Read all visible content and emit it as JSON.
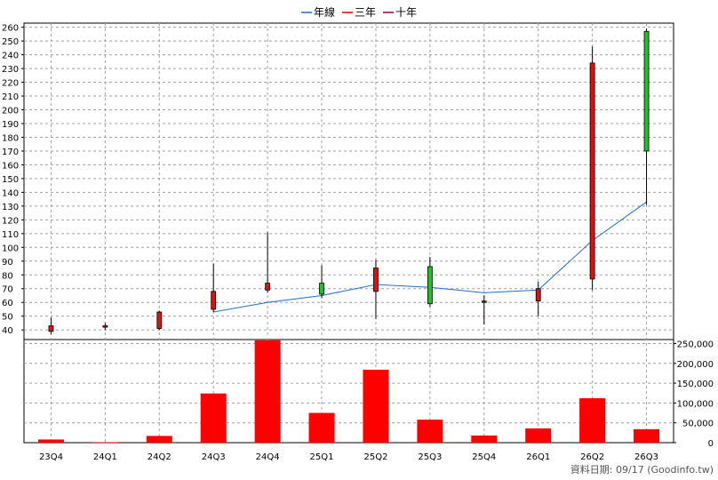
{
  "legend": {
    "annual": "年線",
    "three_year": "三年",
    "ten_year": "十年"
  },
  "credit": "資料日期: 09/17  (Goodinfo.tw)",
  "colors": {
    "up": "#22c022",
    "down": "#dd1111",
    "annual_line": "#1f6fd0",
    "three_year": "#ee0000",
    "ten_year": "#990044",
    "volume": "#ff0000",
    "grid": "#a0a0a0"
  },
  "chart_data": [
    {
      "type": "candlestick",
      "categories": [
        "23Q4",
        "24Q1",
        "24Q2",
        "24Q3",
        "24Q4",
        "25Q1",
        "25Q2",
        "25Q3",
        "25Q4",
        "26Q1",
        "26Q2",
        "26Q3"
      ],
      "candles": [
        {
          "open": 43,
          "close": 39,
          "high": 49,
          "low": 37
        },
        {
          "open": 43,
          "close": 42,
          "high": 45,
          "low": 40
        },
        {
          "open": 53,
          "close": 41,
          "high": 54,
          "low": 40
        },
        {
          "open": 68,
          "close": 55,
          "high": 88,
          "low": 53
        },
        {
          "open": 74,
          "close": 69,
          "high": 111,
          "low": 67
        },
        {
          "open": 66,
          "close": 74,
          "high": 87,
          "low": 63
        },
        {
          "open": 85,
          "close": 68,
          "high": 91,
          "low": 48
        },
        {
          "open": 59,
          "close": 86,
          "high": 93,
          "low": 57
        },
        {
          "open": 61,
          "close": 60,
          "high": 65,
          "low": 44
        },
        {
          "open": 70,
          "close": 61,
          "high": 75,
          "low": 50
        },
        {
          "open": 234,
          "close": 77,
          "high": 246,
          "low": 69
        },
        {
          "open": 170,
          "close": 257,
          "high": 259,
          "low": 131
        }
      ],
      "annual_line": [
        null,
        null,
        null,
        53,
        60,
        65,
        73,
        71,
        67,
        69,
        105,
        133
      ],
      "y_ticks": [
        40,
        50,
        60,
        70,
        80,
        90,
        100,
        110,
        120,
        130,
        140,
        150,
        160,
        170,
        180,
        190,
        200,
        210,
        220,
        230,
        240,
        250,
        260
      ],
      "ylim": [
        33,
        263
      ]
    },
    {
      "type": "bar",
      "categories": [
        "23Q4",
        "24Q1",
        "24Q2",
        "24Q3",
        "24Q4",
        "25Q1",
        "25Q2",
        "25Q3",
        "25Q4",
        "26Q1",
        "26Q2",
        "26Q3"
      ],
      "values": [
        8000,
        800,
        17000,
        124000,
        258000,
        75000,
        184000,
        58000,
        18000,
        36000,
        112000,
        34000
      ],
      "y_ticks": [
        0,
        50000,
        100000,
        150000,
        200000,
        250000
      ],
      "y_tick_labels": [
        "0",
        "50,000",
        "100,000",
        "150,000",
        "200,000",
        "250,000"
      ],
      "ylim": [
        0,
        260000
      ]
    }
  ]
}
